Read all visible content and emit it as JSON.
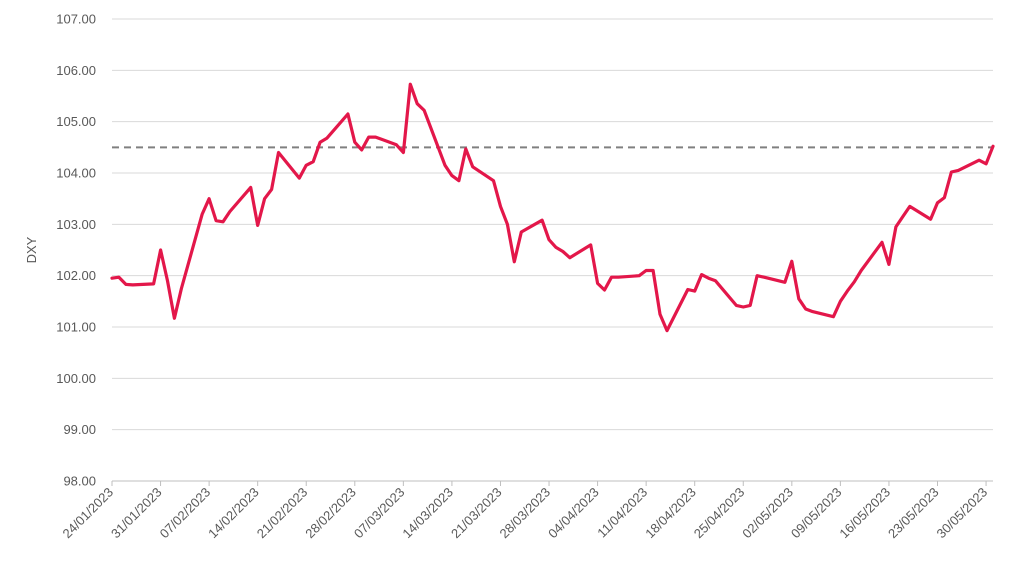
{
  "chart_data": {
    "type": "line",
    "ylabel": "DXY",
    "ylim": [
      98.0,
      107.0
    ],
    "y_ticks": [
      "98.00",
      "99.00",
      "100.00",
      "101.00",
      "102.00",
      "103.00",
      "104.00",
      "105.00",
      "106.00",
      "107.00"
    ],
    "x_range": [
      "2023-01-24",
      "2023-05-31"
    ],
    "x_ticks": [
      "24/01/2023",
      "31/01/2023",
      "07/02/2023",
      "14/02/2023",
      "21/02/2023",
      "28/02/2023",
      "07/03/2023",
      "14/03/2023",
      "21/03/2023",
      "28/03/2023",
      "04/04/2023",
      "11/04/2023",
      "18/04/2023",
      "25/04/2023",
      "02/05/2023",
      "09/05/2023",
      "16/05/2023",
      "23/05/2023",
      "30/05/2023"
    ],
    "grid": true,
    "reference_line": {
      "value": 104.5,
      "style": "dashed",
      "color": "#808080"
    },
    "series": [
      {
        "color": "#e3174a",
        "points": [
          [
            "2023-01-24",
            101.95
          ],
          [
            "2023-01-25",
            101.97
          ],
          [
            "2023-01-26",
            101.83
          ],
          [
            "2023-01-27",
            101.82
          ],
          [
            "2023-01-30",
            101.84
          ],
          [
            "2023-01-31",
            102.5
          ],
          [
            "2023-02-01",
            101.9
          ],
          [
            "2023-02-02",
            101.17
          ],
          [
            "2023-02-03",
            101.75
          ],
          [
            "2023-02-06",
            103.2
          ],
          [
            "2023-02-07",
            103.5
          ],
          [
            "2023-02-08",
            103.07
          ],
          [
            "2023-02-09",
            103.05
          ],
          [
            "2023-02-10",
            103.25
          ],
          [
            "2023-02-13",
            103.72
          ],
          [
            "2023-02-14",
            102.98
          ],
          [
            "2023-02-15",
            103.5
          ],
          [
            "2023-02-16",
            103.68
          ],
          [
            "2023-02-17",
            104.4
          ],
          [
            "2023-02-20",
            103.9
          ],
          [
            "2023-02-21",
            104.15
          ],
          [
            "2023-02-22",
            104.22
          ],
          [
            "2023-02-23",
            104.6
          ],
          [
            "2023-02-24",
            104.68
          ],
          [
            "2023-02-27",
            105.15
          ],
          [
            "2023-02-28",
            104.6
          ],
          [
            "2023-03-01",
            104.45
          ],
          [
            "2023-03-02",
            104.7
          ],
          [
            "2023-03-03",
            104.7
          ],
          [
            "2023-03-06",
            104.55
          ],
          [
            "2023-03-07",
            104.4
          ],
          [
            "2023-03-08",
            105.73
          ],
          [
            "2023-03-09",
            105.35
          ],
          [
            "2023-03-10",
            105.22
          ],
          [
            "2023-03-13",
            104.15
          ],
          [
            "2023-03-14",
            103.95
          ],
          [
            "2023-03-15",
            103.85
          ],
          [
            "2023-03-16",
            104.47
          ],
          [
            "2023-03-17",
            104.12
          ],
          [
            "2023-03-20",
            103.85
          ],
          [
            "2023-03-21",
            103.35
          ],
          [
            "2023-03-22",
            103.0
          ],
          [
            "2023-03-23",
            102.27
          ],
          [
            "2023-03-24",
            102.85
          ],
          [
            "2023-03-27",
            103.08
          ],
          [
            "2023-03-28",
            102.7
          ],
          [
            "2023-03-29",
            102.55
          ],
          [
            "2023-03-30",
            102.47
          ],
          [
            "2023-03-31",
            102.35
          ],
          [
            "2023-04-03",
            102.6
          ],
          [
            "2023-04-04",
            101.85
          ],
          [
            "2023-04-05",
            101.72
          ],
          [
            "2023-04-06",
            101.97
          ],
          [
            "2023-04-07",
            101.97
          ],
          [
            "2023-04-10",
            102.0
          ],
          [
            "2023-04-11",
            102.1
          ],
          [
            "2023-04-12",
            102.1
          ],
          [
            "2023-04-13",
            101.25
          ],
          [
            "2023-04-14",
            100.93
          ],
          [
            "2023-04-17",
            101.73
          ],
          [
            "2023-04-18",
            101.7
          ],
          [
            "2023-04-19",
            102.02
          ],
          [
            "2023-04-20",
            101.95
          ],
          [
            "2023-04-21",
            101.9
          ],
          [
            "2023-04-24",
            101.42
          ],
          [
            "2023-04-25",
            101.39
          ],
          [
            "2023-04-26",
            101.42
          ],
          [
            "2023-04-27",
            102.0
          ],
          [
            "2023-04-28",
            101.97
          ],
          [
            "2023-05-01",
            101.87
          ],
          [
            "2023-05-02",
            102.28
          ],
          [
            "2023-05-03",
            101.55
          ],
          [
            "2023-05-04",
            101.35
          ],
          [
            "2023-05-05",
            101.3
          ],
          [
            "2023-05-08",
            101.2
          ],
          [
            "2023-05-09",
            101.5
          ],
          [
            "2023-05-10",
            101.7
          ],
          [
            "2023-05-11",
            101.88
          ],
          [
            "2023-05-12",
            102.1
          ],
          [
            "2023-05-15",
            102.65
          ],
          [
            "2023-05-16",
            102.22
          ],
          [
            "2023-05-17",
            102.95
          ],
          [
            "2023-05-18",
            103.15
          ],
          [
            "2023-05-19",
            103.35
          ],
          [
            "2023-05-22",
            103.1
          ],
          [
            "2023-05-23",
            103.42
          ],
          [
            "2023-05-24",
            103.52
          ],
          [
            "2023-05-25",
            104.02
          ],
          [
            "2023-05-26",
            104.05
          ],
          [
            "2023-05-29",
            104.25
          ],
          [
            "2023-05-30",
            104.18
          ],
          [
            "2023-05-31",
            104.52
          ]
        ]
      }
    ]
  }
}
